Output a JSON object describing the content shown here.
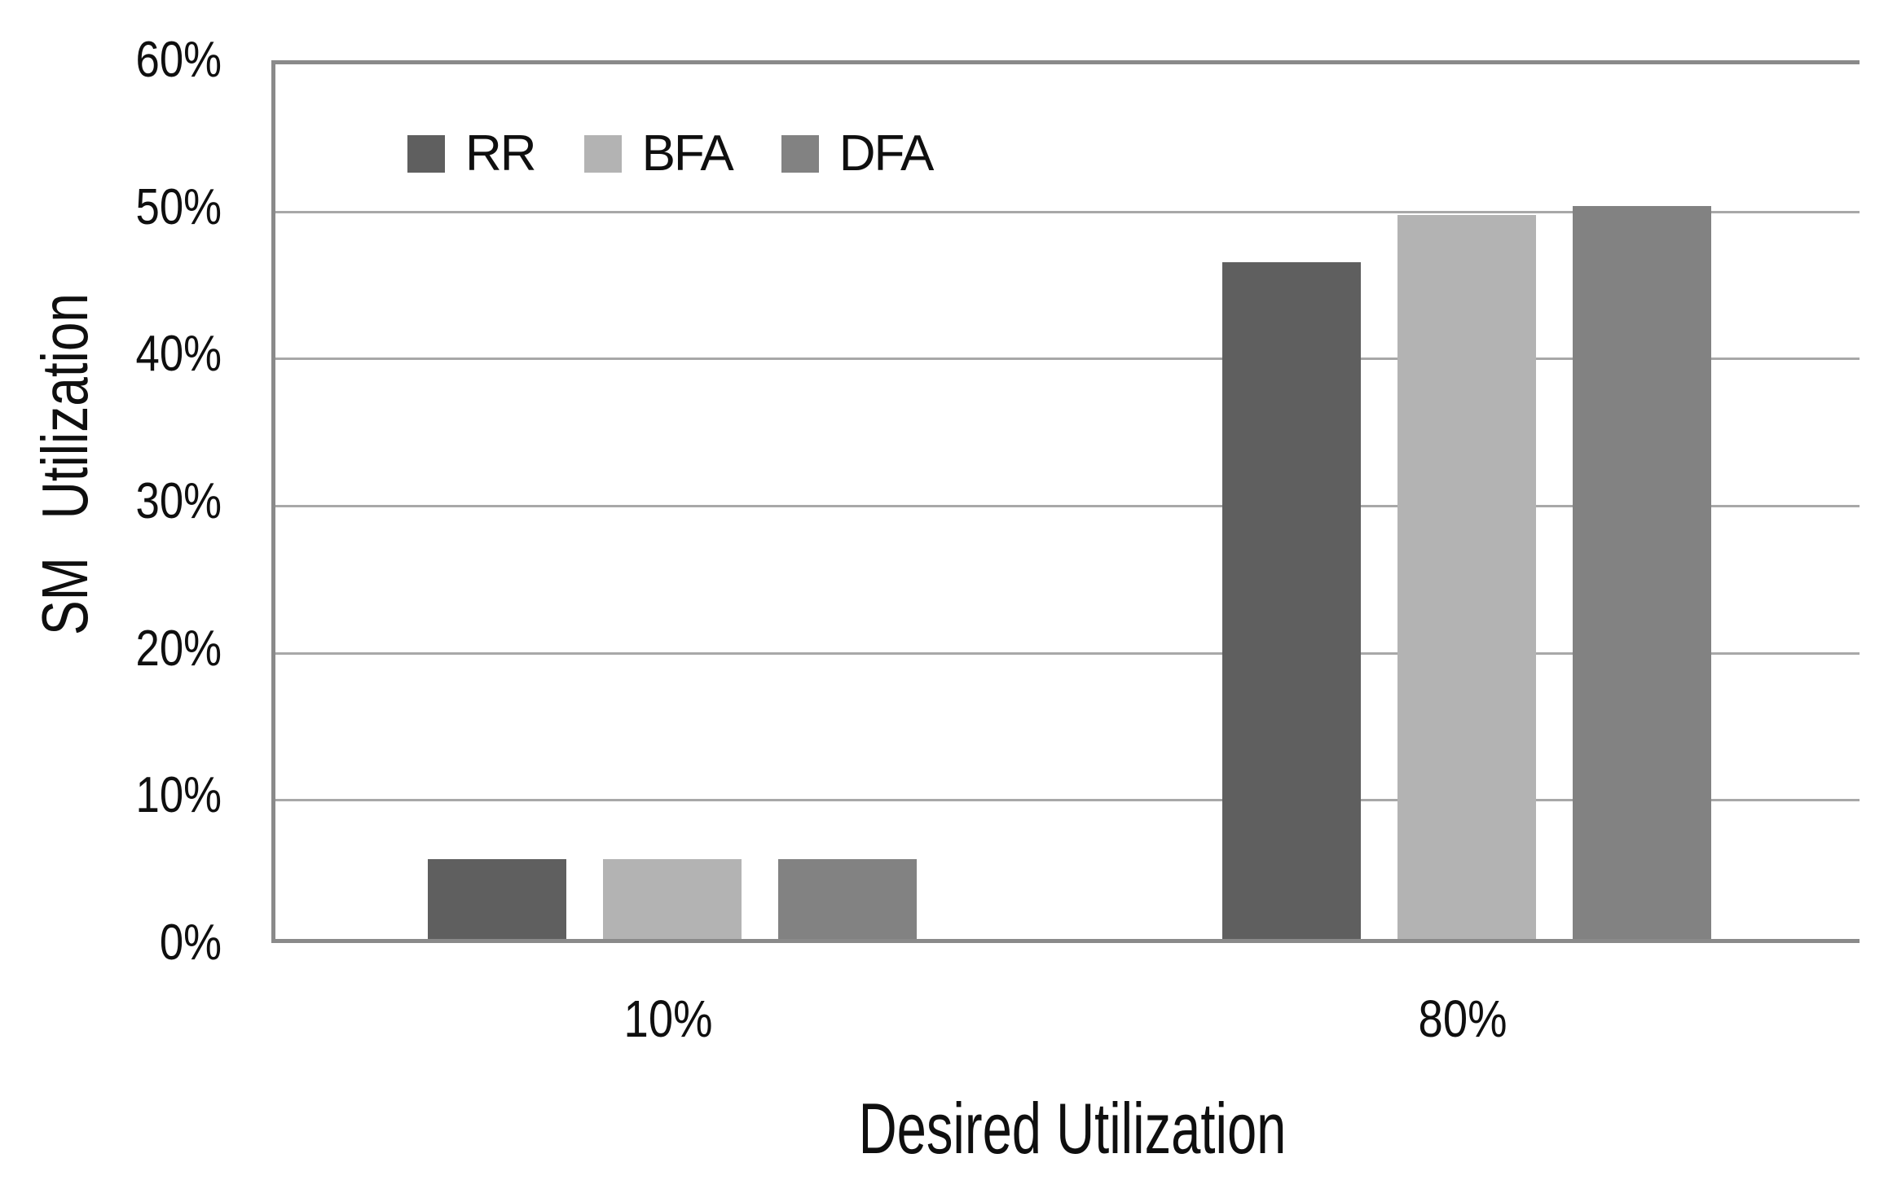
{
  "chart_data": {
    "type": "bar",
    "title": "",
    "xlabel": "Desired Utilization",
    "ylabel": "SM Utilization",
    "categories": [
      "10%",
      "80%"
    ],
    "series": [
      {
        "name": "RR",
        "color": "#5f5f5f",
        "values": [
          5.4,
          46.0
        ]
      },
      {
        "name": "BFA",
        "color": "#b3b3b3",
        "values": [
          5.4,
          49.2
        ]
      },
      {
        "name": "DFA",
        "color": "#828282",
        "values": [
          5.4,
          49.8
        ]
      }
    ],
    "ylim": [
      0,
      60
    ],
    "ytick_step": 10,
    "ytick_labels": [
      "0%",
      "10%",
      "20%",
      "30%",
      "40%",
      "50%",
      "60%"
    ],
    "grid": true,
    "legend_position": "top-left-inside",
    "legend_labels": [
      "RR",
      "BFA",
      "DFA"
    ]
  },
  "colors": {
    "axis_border": "#8a8a8a",
    "gridline": "#a8a8a8",
    "text": "#0f0f0f",
    "background": "#ffffff"
  }
}
